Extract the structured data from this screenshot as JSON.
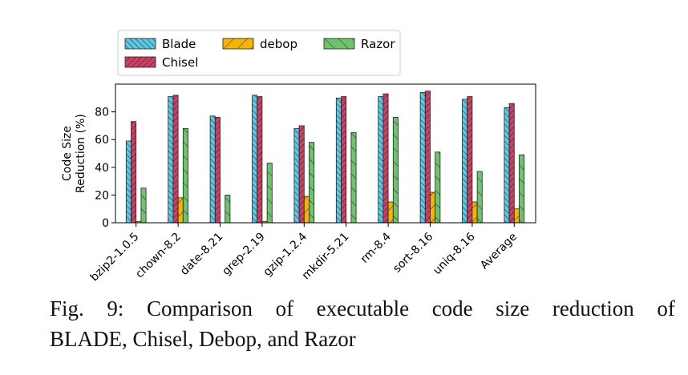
{
  "chart_data": {
    "type": "bar",
    "ylabel": "Code Size\nReduction (%)",
    "xlabel": "",
    "ylim": [
      0,
      100
    ],
    "yticks": [
      0,
      20,
      40,
      60,
      80
    ],
    "grid": false,
    "legend_position": "top-left, outside",
    "categories": [
      "bzip2-1.0.5",
      "chown-8.2",
      "date-8.21",
      "grep-2.19",
      "gzip-1.2.4",
      "mkdir-5.21",
      "rm-8.4",
      "sort-8.16",
      "uniq-8.16",
      "Average"
    ],
    "series": [
      {
        "name": "Blade",
        "color": "#5bc8e6",
        "hatch": "////",
        "values": [
          59,
          91,
          77,
          92,
          68,
          90,
          91,
          94,
          89,
          83
        ]
      },
      {
        "name": "Chisel",
        "color": "#cf3f62",
        "hatch": "\\\\\\\\",
        "values": [
          73,
          92,
          76,
          91,
          70,
          91,
          93,
          95,
          91,
          86
        ]
      },
      {
        "name": "debop",
        "color": "#f5b400",
        "hatch": "\\",
        "values": [
          1,
          18,
          0,
          1,
          19,
          0,
          15,
          22,
          15,
          10
        ]
      },
      {
        "name": "Razor",
        "color": "#6cc46c",
        "hatch": "/",
        "values": [
          25,
          68,
          20,
          43,
          58,
          65,
          76,
          51,
          37,
          49
        ]
      }
    ]
  },
  "caption": {
    "line1": "Fig. 9: Comparison of executable code size reduction of",
    "line2_name": "BLADE",
    "line2_rest": ", Chisel, Debop, and Razor"
  }
}
